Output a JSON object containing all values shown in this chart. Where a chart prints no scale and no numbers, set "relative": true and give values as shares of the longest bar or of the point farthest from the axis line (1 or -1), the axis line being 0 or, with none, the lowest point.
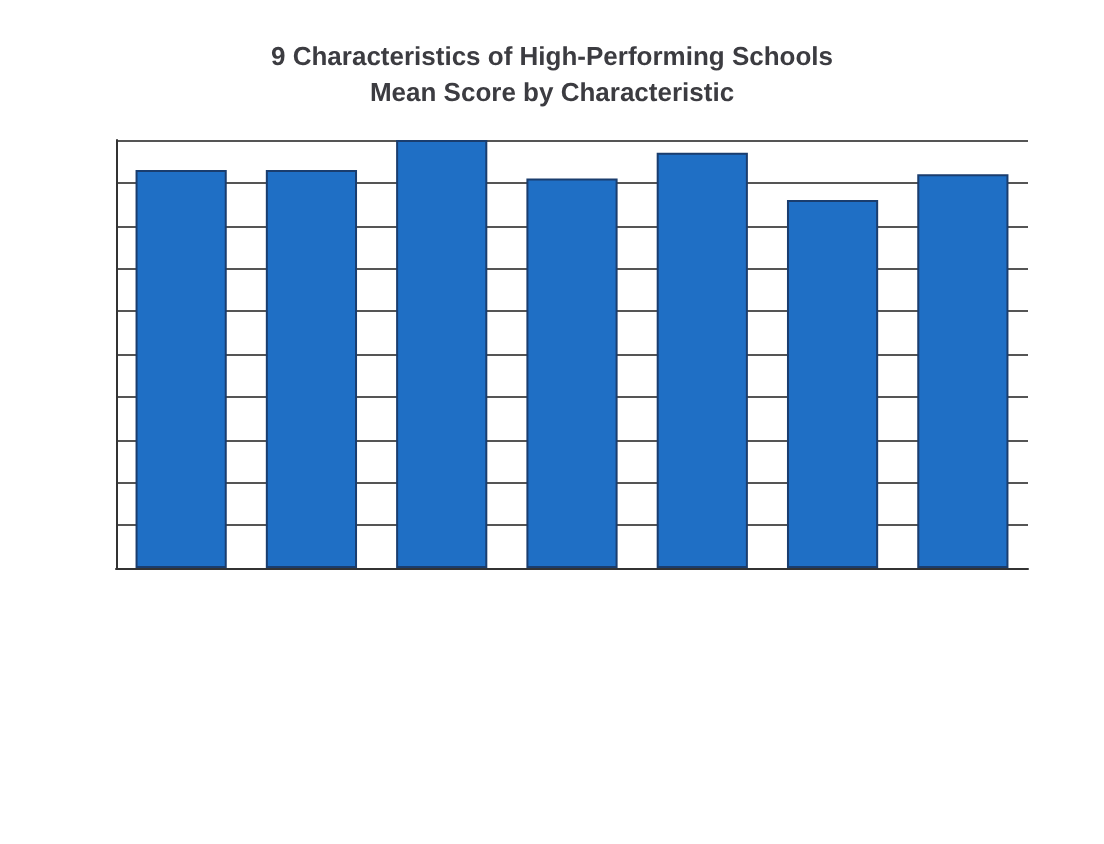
{
  "chart_data": {
    "type": "bar",
    "title": "9 Characteristics of High-Performing Schools\nMean Score by Characteristic",
    "categories": [
      null,
      null,
      null,
      null,
      null,
      null,
      null
    ],
    "values": [
      0.93,
      0.93,
      1,
      0.91,
      0.97,
      0.86,
      0.92
    ],
    "color": "#1f6fc5",
    "relative": true,
    "grid": "y"
  }
}
